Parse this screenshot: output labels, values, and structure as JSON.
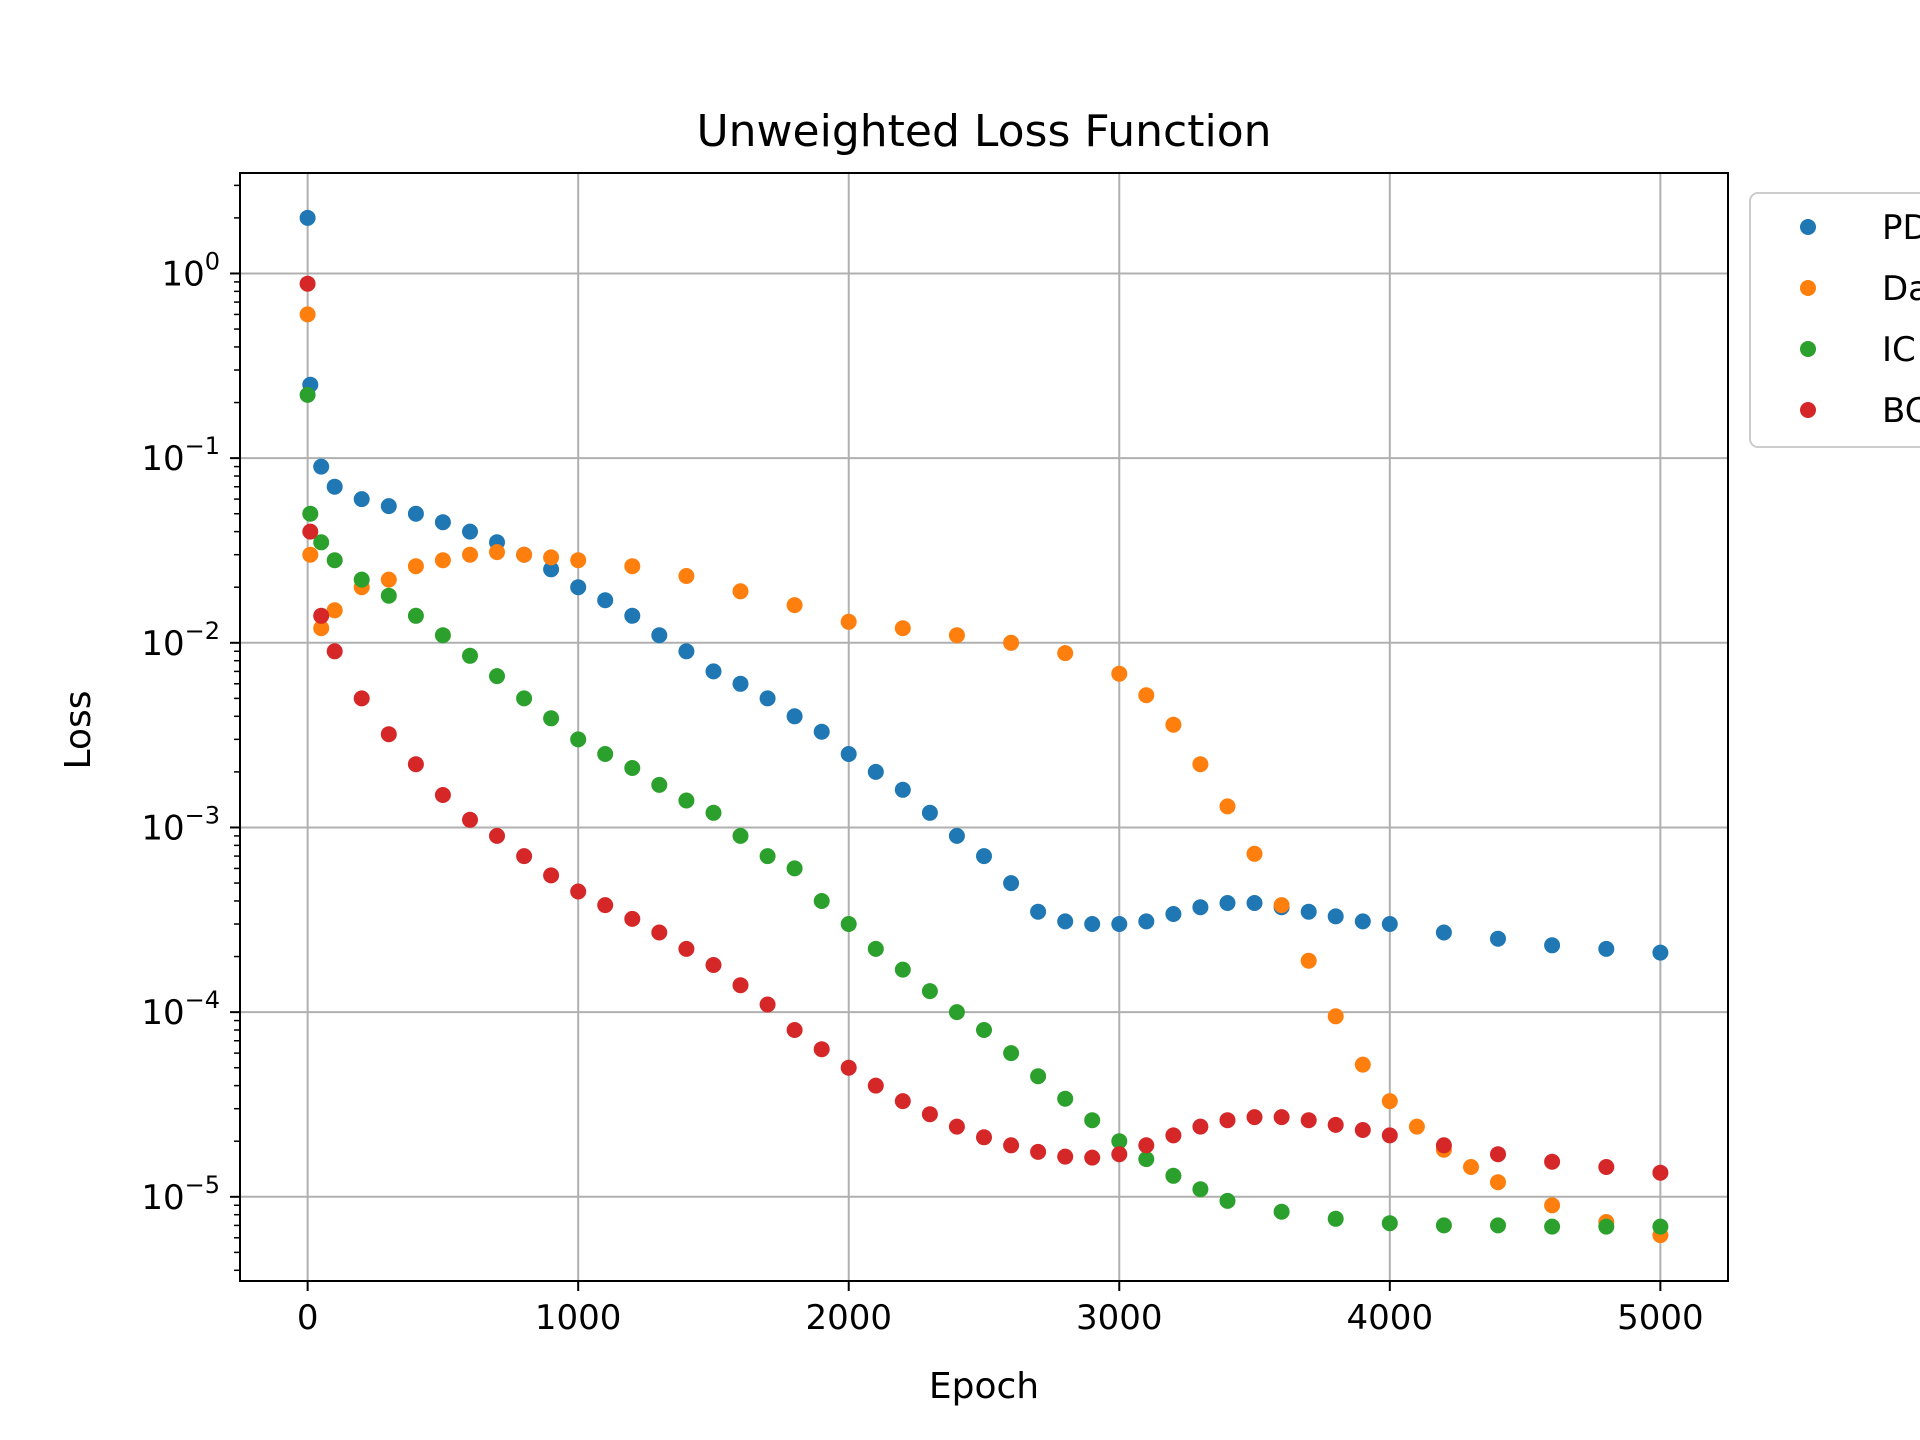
{
  "chart_data": {
    "type": "scatter",
    "title": "Unweighted Loss Function",
    "xlabel": "Epoch",
    "ylabel": "Loss",
    "yscale": "log",
    "xlim": [
      -250,
      5250
    ],
    "ylim": [
      3.5e-06,
      3.5
    ],
    "xticks": [
      0,
      1000,
      2000,
      3000,
      4000,
      5000
    ],
    "xtick_labels": [
      "0",
      "1000",
      "2000",
      "3000",
      "4000",
      "5000"
    ],
    "yticks": [
      {
        "value": 1,
        "base": "10",
        "exp": "0"
      },
      {
        "value": 0.1,
        "base": "10",
        "exp": "−1"
      },
      {
        "value": 0.01,
        "base": "10",
        "exp": "−2"
      },
      {
        "value": 0.001,
        "base": "10",
        "exp": "−3"
      },
      {
        "value": 0.0001,
        "base": "10",
        "exp": "−4"
      },
      {
        "value": 1e-05,
        "base": "10",
        "exp": "−5"
      }
    ],
    "grid": true,
    "legend_position": "outside-right-top",
    "series": [
      {
        "name": "PD",
        "color": "#1f77b4",
        "x": [
          0,
          10,
          50,
          100,
          200,
          300,
          400,
          500,
          600,
          700,
          800,
          900,
          1000,
          1100,
          1200,
          1300,
          1400,
          1500,
          1600,
          1700,
          1800,
          1900,
          2000,
          2100,
          2200,
          2300,
          2400,
          2500,
          2600,
          2700,
          2800,
          2900,
          3000,
          3100,
          3200,
          3300,
          3400,
          3500,
          3600,
          3700,
          3800,
          3900,
          4000,
          4200,
          4400,
          4600,
          4800,
          5000
        ],
        "y": [
          2.0,
          0.25,
          0.09,
          0.07,
          0.06,
          0.055,
          0.05,
          0.045,
          0.04,
          0.035,
          0.03,
          0.025,
          0.02,
          0.017,
          0.014,
          0.011,
          0.009,
          0.007,
          0.006,
          0.005,
          0.004,
          0.0033,
          0.0025,
          0.002,
          0.0016,
          0.0012,
          0.0009,
          0.0007,
          0.0005,
          0.00035,
          0.00031,
          0.0003,
          0.0003,
          0.00031,
          0.00034,
          0.00037,
          0.00039,
          0.00039,
          0.00037,
          0.00035,
          0.00033,
          0.00031,
          0.0003,
          0.00027,
          0.00025,
          0.00023,
          0.00022,
          0.00021
        ]
      },
      {
        "name": "Da",
        "color": "#ff7f0e",
        "x": [
          0,
          10,
          50,
          100,
          200,
          300,
          400,
          500,
          600,
          700,
          800,
          900,
          1000,
          1200,
          1400,
          1600,
          1800,
          2000,
          2200,
          2400,
          2600,
          2800,
          3000,
          3100,
          3200,
          3300,
          3400,
          3500,
          3600,
          3700,
          3800,
          3900,
          4000,
          4100,
          4200,
          4300,
          4400,
          4600,
          4800,
          5000
        ],
        "y": [
          0.6,
          0.03,
          0.012,
          0.015,
          0.02,
          0.022,
          0.026,
          0.028,
          0.03,
          0.031,
          0.03,
          0.029,
          0.028,
          0.026,
          0.023,
          0.019,
          0.016,
          0.013,
          0.012,
          0.011,
          0.01,
          0.0088,
          0.0068,
          0.0052,
          0.0036,
          0.0022,
          0.0013,
          0.00072,
          0.00038,
          0.00019,
          9.5e-05,
          5.2e-05,
          3.3e-05,
          2.4e-05,
          1.8e-05,
          1.45e-05,
          1.2e-05,
          9e-06,
          7.3e-06,
          6.2e-06
        ]
      },
      {
        "name": "IC",
        "color": "#2ca02c",
        "x": [
          0,
          10,
          50,
          100,
          200,
          300,
          400,
          500,
          600,
          700,
          800,
          900,
          1000,
          1100,
          1200,
          1300,
          1400,
          1500,
          1600,
          1700,
          1800,
          1900,
          2000,
          2100,
          2200,
          2300,
          2400,
          2500,
          2600,
          2700,
          2800,
          2900,
          3000,
          3100,
          3200,
          3300,
          3400,
          3600,
          3800,
          4000,
          4200,
          4400,
          4600,
          4800,
          5000
        ],
        "y": [
          0.22,
          0.05,
          0.035,
          0.028,
          0.022,
          0.018,
          0.014,
          0.011,
          0.0085,
          0.0066,
          0.005,
          0.0039,
          0.003,
          0.0025,
          0.0021,
          0.0017,
          0.0014,
          0.0012,
          0.0009,
          0.0007,
          0.0006,
          0.0004,
          0.0003,
          0.00022,
          0.00017,
          0.00013,
          0.0001,
          8e-05,
          6e-05,
          4.5e-05,
          3.4e-05,
          2.6e-05,
          2e-05,
          1.6e-05,
          1.3e-05,
          1.1e-05,
          9.5e-06,
          8.3e-06,
          7.6e-06,
          7.2e-06,
          7e-06,
          7e-06,
          6.9e-06,
          6.9e-06,
          6.9e-06
        ]
      },
      {
        "name": "BC",
        "color": "#d62728",
        "x": [
          0,
          10,
          50,
          100,
          200,
          300,
          400,
          500,
          600,
          700,
          800,
          900,
          1000,
          1100,
          1200,
          1300,
          1400,
          1500,
          1600,
          1700,
          1800,
          1900,
          2000,
          2100,
          2200,
          2300,
          2400,
          2500,
          2600,
          2700,
          2800,
          2900,
          3000,
          3100,
          3200,
          3300,
          3400,
          3500,
          3600,
          3700,
          3800,
          3900,
          4000,
          4200,
          4400,
          4600,
          4800,
          5000
        ],
        "y": [
          0.88,
          0.04,
          0.014,
          0.009,
          0.005,
          0.0032,
          0.0022,
          0.0015,
          0.0011,
          0.0009,
          0.0007,
          0.00055,
          0.00045,
          0.00038,
          0.00032,
          0.00027,
          0.00022,
          0.00018,
          0.00014,
          0.00011,
          8e-05,
          6.3e-05,
          5e-05,
          4e-05,
          3.3e-05,
          2.8e-05,
          2.4e-05,
          2.1e-05,
          1.9e-05,
          1.75e-05,
          1.65e-05,
          1.63e-05,
          1.7e-05,
          1.9e-05,
          2.15e-05,
          2.4e-05,
          2.6e-05,
          2.7e-05,
          2.7e-05,
          2.6e-05,
          2.45e-05,
          2.3e-05,
          2.15e-05,
          1.9e-05,
          1.7e-05,
          1.55e-05,
          1.45e-05,
          1.35e-05
        ]
      }
    ]
  }
}
